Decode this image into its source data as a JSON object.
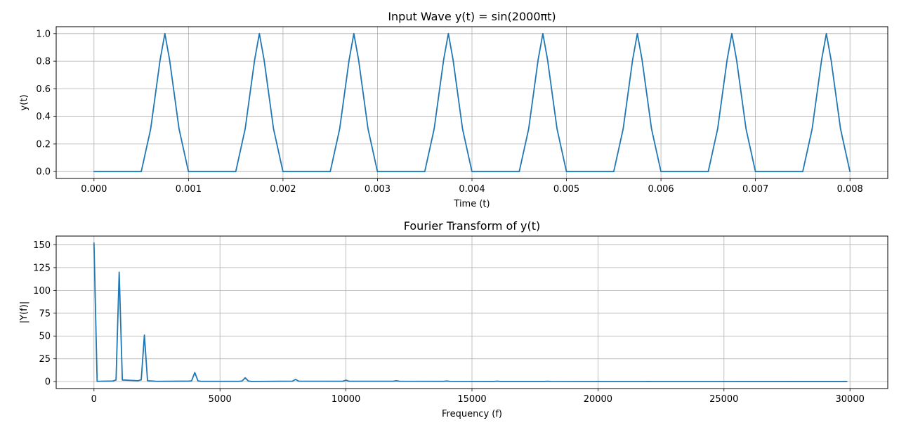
{
  "chart_data": [
    {
      "type": "line",
      "title": "Input Wave y(t) = sin(2000πt)",
      "xlabel": "Time (t)",
      "ylabel": "y(t)",
      "xlim": [
        -0.0004,
        0.0084
      ],
      "ylim": [
        -0.05,
        1.05
      ],
      "xticks": [
        "0.000",
        "0.001",
        "0.002",
        "0.003",
        "0.004",
        "0.005",
        "0.006",
        "0.007",
        "0.008"
      ],
      "yticks": [
        "0.0",
        "0.2",
        "0.4",
        "0.6",
        "0.8",
        "1.0"
      ],
      "grid": true,
      "series": [
        {
          "color": "#1f77b4",
          "x": [
            0,
            0.0005,
            0.00051,
            0.0006,
            0.0007,
            0.00075,
            0.0008,
            0.0009,
            0.00099,
            0.001,
            0.0015,
            0.00151,
            0.0016,
            0.0017,
            0.00175,
            0.0018,
            0.0019,
            0.00199,
            0.002,
            0.0025,
            0.00251,
            0.0026,
            0.0027,
            0.00275,
            0.0028,
            0.0029,
            0.00299,
            0.003,
            0.0035,
            0.00351,
            0.0036,
            0.0037,
            0.00375,
            0.0038,
            0.0039,
            0.00399,
            0.004,
            0.0045,
            0.00451,
            0.0046,
            0.0047,
            0.00475,
            0.0048,
            0.0049,
            0.00499,
            0.005,
            0.0055,
            0.00551,
            0.0056,
            0.0057,
            0.00575,
            0.0058,
            0.0059,
            0.00599,
            0.006,
            0.0065,
            0.00651,
            0.0066,
            0.0067,
            0.00675,
            0.0068,
            0.0069,
            0.00699,
            0.007,
            0.0075,
            0.00751,
            0.0076,
            0.0077,
            0.00775,
            0.0078,
            0.0079,
            0.00799,
            0.008
          ],
          "y": [
            0,
            0,
            0.03,
            0.31,
            0.81,
            1.0,
            0.81,
            0.31,
            0.03,
            0,
            0,
            0.03,
            0.31,
            0.81,
            1.0,
            0.81,
            0.31,
            0.03,
            0,
            0,
            0.03,
            0.31,
            0.81,
            1.0,
            0.81,
            0.31,
            0.03,
            0,
            0,
            0.03,
            0.31,
            0.81,
            1.0,
            0.81,
            0.31,
            0.03,
            0,
            0,
            0.03,
            0.31,
            0.81,
            1.0,
            0.81,
            0.31,
            0.03,
            0,
            0,
            0.03,
            0.31,
            0.81,
            1.0,
            0.81,
            0.31,
            0.03,
            0,
            0,
            0.03,
            0.31,
            0.81,
            1.0,
            0.81,
            0.31,
            0.03,
            0,
            0,
            0.03,
            0.31,
            0.81,
            1.0,
            0.81,
            0.31,
            0.03,
            0
          ]
        }
      ]
    },
    {
      "type": "line",
      "title": "Fourier Transform of y(t)",
      "xlabel": "Frequency (f)",
      "ylabel": "|Y(f)|",
      "xlim": [
        -1500,
        31500
      ],
      "ylim": [
        -7.6,
        159.6
      ],
      "xticks": [
        "0",
        "5000",
        "10000",
        "15000",
        "20000",
        "25000",
        "30000"
      ],
      "yticks": [
        "0",
        "25",
        "50",
        "75",
        "100",
        "125",
        "150"
      ],
      "grid": true,
      "series": [
        {
          "color": "#1f77b4",
          "x": [
            0,
            125,
            750,
            875,
            1000,
            1125,
            1750,
            1875,
            2000,
            2125,
            2500,
            3750,
            3875,
            4000,
            4125,
            4250,
            5750,
            5875,
            6000,
            6125,
            6250,
            7875,
            8000,
            8125,
            9875,
            10000,
            10125,
            11875,
            12000,
            12125,
            13875,
            14000,
            14125,
            15875,
            16000,
            16125,
            17875,
            18000,
            18125,
            19875,
            20000,
            20125,
            21875,
            22000,
            22125,
            24000,
            29875
          ],
          "y": [
            152,
            0.3,
            0.7,
            1.8,
            120,
            1.8,
            1.0,
            2.0,
            51,
            1.0,
            0.3,
            0.5,
            0.9,
            10,
            0.9,
            0.3,
            0.3,
            0.7,
            4.2,
            0.7,
            0.2,
            0.5,
            2.4,
            0.5,
            0.4,
            1.6,
            0.4,
            0.4,
            1.0,
            0.4,
            0.3,
            0.7,
            0.3,
            0.2,
            0.5,
            0.2,
            0.2,
            0.4,
            0.2,
            0.1,
            0.3,
            0.1,
            0.1,
            0.2,
            0.1,
            0.1,
            0.05
          ]
        }
      ]
    }
  ]
}
